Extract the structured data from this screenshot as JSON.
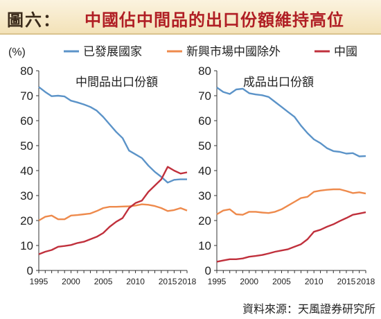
{
  "title": {
    "prefix": "圖六：",
    "text": "中國佔中間品的出口份額維持高位"
  },
  "unit": "(%)",
  "legend": [
    "已發展國家",
    "新興市場中國除外",
    "中國"
  ],
  "colors": {
    "developed": "#5b93c8",
    "emerging": "#ee8a4c",
    "china": "#c0303c"
  },
  "source": "資料來源：天風證券研究所",
  "chart_data": [
    {
      "type": "line",
      "title": "中間品出口份額",
      "ylim": [
        0,
        80
      ],
      "yticks": [
        0,
        10,
        20,
        30,
        40,
        50,
        60,
        70,
        80
      ],
      "xticks": [
        1995,
        2000,
        2005,
        2010,
        2015,
        2018
      ],
      "x": [
        1995,
        1996,
        1997,
        1998,
        1999,
        2000,
        2001,
        2002,
        2003,
        2004,
        2005,
        2006,
        2007,
        2008,
        2009,
        2010,
        2011,
        2012,
        2013,
        2014,
        2015,
        2016,
        2017,
        2018
      ],
      "series": [
        {
          "name": "已發展國家",
          "values": [
            73.5,
            71.5,
            69.8,
            70,
            69.7,
            68,
            67.3,
            66.5,
            65.5,
            64,
            61.5,
            58.5,
            55.5,
            53,
            48,
            46.5,
            45,
            42,
            39.5,
            37.5,
            35.2,
            36.3,
            36.5,
            36.5
          ]
        },
        {
          "name": "新興市場中國除外",
          "values": [
            20,
            21.5,
            22,
            20.5,
            20.5,
            22,
            22.2,
            22.5,
            22.8,
            23.8,
            25,
            25.5,
            25.5,
            25.6,
            25.7,
            26,
            26.5,
            26.3,
            25.8,
            25,
            23.8,
            24.2,
            25,
            24
          ]
        },
        {
          "name": "中國",
          "values": [
            6.5,
            7.5,
            8.2,
            9.5,
            9.8,
            10.2,
            11,
            11.5,
            12.5,
            13.5,
            15,
            17.5,
            19.5,
            21,
            25,
            27,
            28,
            31.5,
            34,
            36.5,
            41.5,
            40,
            38.8,
            39.3
          ]
        }
      ]
    },
    {
      "type": "line",
      "title": "成品出口份額",
      "ylim": [
        0,
        80
      ],
      "yticks": [
        0,
        10,
        20,
        30,
        40,
        50,
        60,
        70,
        80
      ],
      "xticks": [
        1995,
        2000,
        2005,
        2010,
        2015,
        2018
      ],
      "x": [
        1995,
        1996,
        1997,
        1998,
        1999,
        2000,
        2001,
        2002,
        2003,
        2004,
        2005,
        2006,
        2007,
        2008,
        2009,
        2010,
        2011,
        2012,
        2013,
        2014,
        2015,
        2016,
        2017,
        2018
      ],
      "series": [
        {
          "name": "已發展國家",
          "values": [
            73.3,
            71.5,
            70.7,
            72.5,
            72.8,
            71,
            70.5,
            70.2,
            69.5,
            67.5,
            65.5,
            63.5,
            61.5,
            58,
            55,
            52.5,
            51,
            49,
            47.8,
            47.5,
            46.8,
            47,
            45.7,
            45.8
          ]
        },
        {
          "name": "新興市場中國除外",
          "values": [
            22.5,
            24,
            24.5,
            22.5,
            22.3,
            23.5,
            23.5,
            23.2,
            23,
            23.5,
            24.5,
            26,
            27.5,
            29,
            29.5,
            31.5,
            32,
            32.3,
            32.5,
            32.5,
            31.8,
            31,
            31.3,
            30.8
          ]
        },
        {
          "name": "中國",
          "values": [
            3.5,
            4,
            4.5,
            4.5,
            4.8,
            5.5,
            5.8,
            6.2,
            6.8,
            7.5,
            8,
            8.5,
            9.5,
            10.5,
            12.5,
            15.5,
            16.3,
            17.5,
            18.5,
            19.8,
            21,
            22.3,
            22.8,
            23.3
          ]
        }
      ]
    }
  ]
}
